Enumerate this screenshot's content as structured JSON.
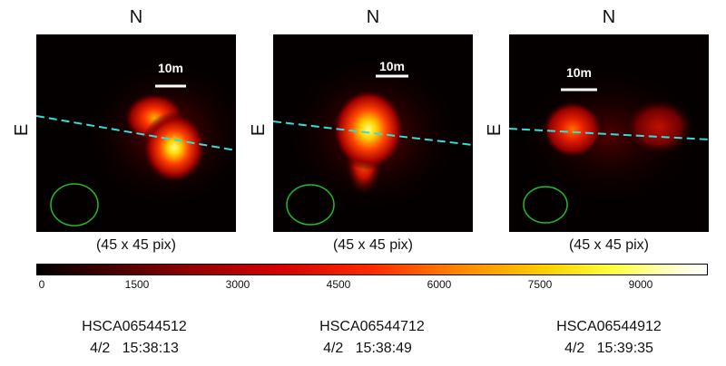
{
  "panels": [
    {
      "north_label": "N",
      "east_label": "E",
      "scale_label": "10m",
      "dimension_label": "(45 x 45 pix)",
      "file_id": "HSCA06544512",
      "date": "4/2",
      "time": "15:38:13"
    },
    {
      "north_label": "N",
      "east_label": "E",
      "scale_label": "10m",
      "dimension_label": "(45 x 45 pix)",
      "file_id": "HSCA06544712",
      "date": "4/2",
      "time": "15:38:49"
    },
    {
      "north_label": "N",
      "east_label": "E",
      "scale_label": "10m",
      "dimension_label": "(45 x 45 pix)",
      "file_id": "HSCA06544912",
      "date": "4/2",
      "time": "15:39:35"
    }
  ],
  "colorbar": {
    "ticks": [
      "0",
      "1500",
      "3000",
      "4500",
      "6000",
      "7500",
      "9000"
    ],
    "colormap": "hot"
  },
  "colors": {
    "trajectory_line": "#33dddd",
    "beam_ellipse": "#22bb22"
  }
}
